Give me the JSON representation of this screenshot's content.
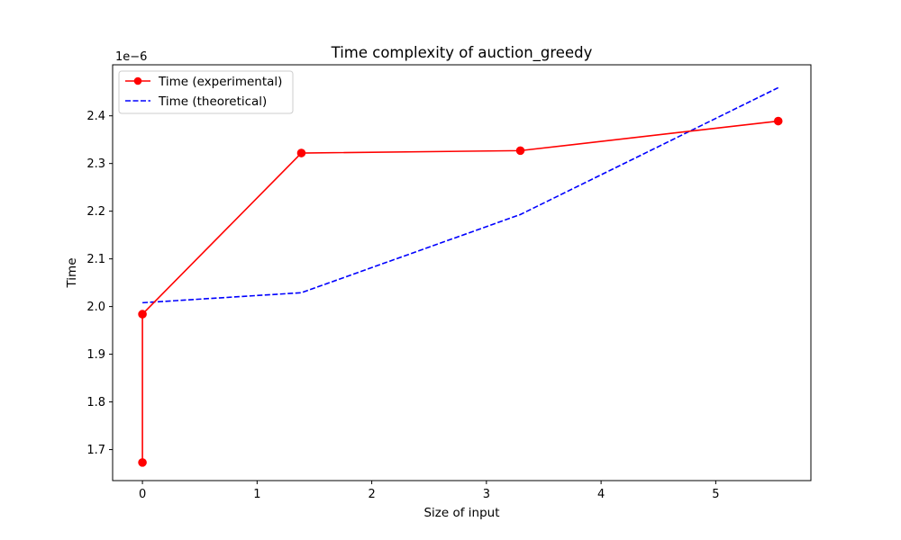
{
  "chart_data": {
    "type": "line",
    "title": "Time complexity of auction_greedy",
    "xlabel": "Size of input",
    "ylabel": "Time",
    "y_offset_text": "1e−6",
    "y_scale": 1e-06,
    "xlim": [
      -0.26,
      5.83
    ],
    "ylim": [
      1.635,
      2.507
    ],
    "x_ticks": [
      0,
      1,
      2,
      3,
      4,
      5
    ],
    "x_tick_labels": [
      "0",
      "1",
      "2",
      "3",
      "4",
      "5"
    ],
    "y_ticks": [
      1.7,
      1.8,
      1.9,
      2.0,
      2.1,
      2.2,
      2.3,
      2.4
    ],
    "y_tick_labels": [
      "1.7",
      "1.8",
      "1.9",
      "2.0",
      "2.1",
      "2.2",
      "2.3",
      "2.4"
    ],
    "grid": false,
    "legend_position": "top-left",
    "series": [
      {
        "name": "Time (experimental)",
        "color": "#ff0000",
        "style": "solid",
        "marker": "circle",
        "x": [
          0,
          0,
          1.386,
          3.296,
          5.545
        ],
        "y": [
          1.673,
          1.984,
          2.322,
          2.327,
          2.389
        ]
      },
      {
        "name": "Time (theoretical)",
        "color": "#0000ff",
        "style": "dashed",
        "marker": "none",
        "x": [
          0,
          0,
          1.386,
          3.296,
          5.545
        ],
        "y": [
          2.008,
          2.008,
          2.029,
          2.193,
          2.459
        ]
      }
    ]
  }
}
